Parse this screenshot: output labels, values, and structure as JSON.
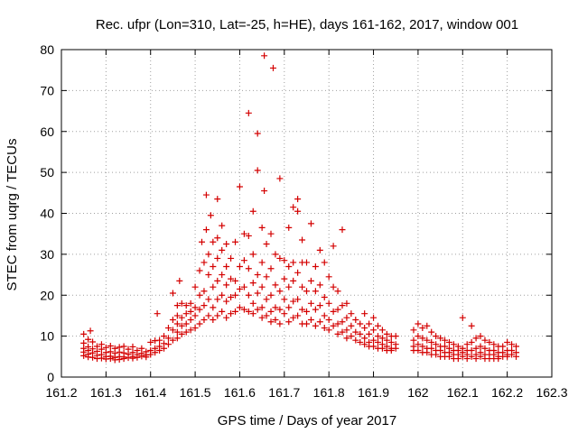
{
  "chart_data": {
    "type": "scatter",
    "title": "Rec. ufpr (Lon=310, Lat=-25, h=HE), days 161-162, 2017, window 001",
    "xlabel": "GPS time / Days of year 2017",
    "ylabel": "STEC from uqrg / TECUs",
    "xlim": [
      161.2,
      162.3
    ],
    "ylim": [
      0,
      80
    ],
    "xticks": [
      "161.2",
      "161.3",
      "161.4",
      "161.5",
      "161.6",
      "161.7",
      "161.8",
      "161.9",
      "162",
      "162.1",
      "162.2",
      "162.3"
    ],
    "yticks": [
      "0",
      "10",
      "20",
      "30",
      "40",
      "50",
      "60",
      "70",
      "80"
    ],
    "grid": true,
    "marker": "plus",
    "color": "#d40000",
    "points": [
      [
        161.25,
        10.5
      ],
      [
        161.25,
        8.3
      ],
      [
        161.25,
        7.0
      ],
      [
        161.25,
        6.1
      ],
      [
        161.25,
        5.2
      ],
      [
        161.26,
        9.2
      ],
      [
        161.26,
        7.4
      ],
      [
        161.26,
        6.5
      ],
      [
        161.26,
        5.6
      ],
      [
        161.26,
        4.9
      ],
      [
        161.265,
        11.3
      ],
      [
        161.27,
        8.6
      ],
      [
        161.27,
        6.9
      ],
      [
        161.27,
        5.9
      ],
      [
        161.27,
        4.8
      ],
      [
        161.28,
        7.5
      ],
      [
        161.28,
        6.3
      ],
      [
        161.28,
        5.3
      ],
      [
        161.28,
        4.5
      ],
      [
        161.29,
        8.0
      ],
      [
        161.29,
        6.8
      ],
      [
        161.29,
        5.5
      ],
      [
        161.29,
        4.6
      ],
      [
        161.3,
        7.2
      ],
      [
        161.3,
        6.0
      ],
      [
        161.3,
        5.0
      ],
      [
        161.3,
        4.4
      ],
      [
        161.31,
        7.6
      ],
      [
        161.31,
        6.2
      ],
      [
        161.31,
        5.1
      ],
      [
        161.31,
        4.5
      ],
      [
        161.32,
        7.0
      ],
      [
        161.32,
        5.8
      ],
      [
        161.32,
        4.8
      ],
      [
        161.32,
        4.2
      ],
      [
        161.33,
        7.3
      ],
      [
        161.33,
        6.1
      ],
      [
        161.33,
        5.0
      ],
      [
        161.33,
        4.3
      ],
      [
        161.34,
        7.5
      ],
      [
        161.34,
        5.9
      ],
      [
        161.34,
        4.9
      ],
      [
        161.34,
        4.5
      ],
      [
        161.35,
        6.8
      ],
      [
        161.35,
        5.6
      ],
      [
        161.35,
        4.7
      ],
      [
        161.36,
        7.4
      ],
      [
        161.36,
        6.0
      ],
      [
        161.36,
        5.0
      ],
      [
        161.36,
        4.6
      ],
      [
        161.37,
        6.5
      ],
      [
        161.37,
        5.5
      ],
      [
        161.37,
        4.8
      ],
      [
        161.38,
        7.0
      ],
      [
        161.38,
        5.8
      ],
      [
        161.38,
        5.1
      ],
      [
        161.39,
        6.2
      ],
      [
        161.39,
        5.4
      ],
      [
        161.39,
        4.9
      ],
      [
        161.4,
        8.5
      ],
      [
        161.4,
        6.5
      ],
      [
        161.4,
        5.5
      ],
      [
        161.41,
        8.9
      ],
      [
        161.41,
        7.0
      ],
      [
        161.41,
        6.0
      ],
      [
        161.415,
        15.5
      ],
      [
        161.42,
        9.0
      ],
      [
        161.42,
        7.5
      ],
      [
        161.42,
        6.5
      ],
      [
        161.43,
        10.0
      ],
      [
        161.43,
        8.2
      ],
      [
        161.43,
        7.0
      ],
      [
        161.44,
        12.0
      ],
      [
        161.44,
        9.5
      ],
      [
        161.44,
        8.0
      ],
      [
        161.45,
        20.5
      ],
      [
        161.45,
        14.0
      ],
      [
        161.45,
        11.5
      ],
      [
        161.45,
        9.0
      ],
      [
        161.46,
        17.5
      ],
      [
        161.46,
        15.0
      ],
      [
        161.46,
        13.0
      ],
      [
        161.46,
        11.0
      ],
      [
        161.46,
        9.5
      ],
      [
        161.465,
        23.5
      ],
      [
        161.47,
        18.0
      ],
      [
        161.47,
        14.5
      ],
      [
        161.47,
        12.5
      ],
      [
        161.47,
        10.5
      ],
      [
        161.48,
        17.5
      ],
      [
        161.48,
        15.5
      ],
      [
        161.48,
        13.0
      ],
      [
        161.48,
        11.0
      ],
      [
        161.49,
        18.0
      ],
      [
        161.49,
        16.0
      ],
      [
        161.49,
        14.0
      ],
      [
        161.49,
        11.5
      ],
      [
        161.5,
        22.0
      ],
      [
        161.5,
        17.0
      ],
      [
        161.5,
        15.0
      ],
      [
        161.5,
        12.0
      ],
      [
        161.51,
        26.0
      ],
      [
        161.51,
        20.0
      ],
      [
        161.51,
        16.5
      ],
      [
        161.51,
        13.0
      ],
      [
        161.515,
        33.0
      ],
      [
        161.52,
        28.0
      ],
      [
        161.52,
        21.0
      ],
      [
        161.52,
        17.5
      ],
      [
        161.52,
        14.0
      ],
      [
        161.525,
        44.5
      ],
      [
        161.525,
        36.0
      ],
      [
        161.53,
        30.0
      ],
      [
        161.53,
        25.0
      ],
      [
        161.53,
        19.0
      ],
      [
        161.53,
        15.0
      ],
      [
        161.535,
        39.5
      ],
      [
        161.54,
        33.0
      ],
      [
        161.54,
        27.0
      ],
      [
        161.54,
        22.0
      ],
      [
        161.54,
        17.0
      ],
      [
        161.54,
        14.0
      ],
      [
        161.55,
        43.5
      ],
      [
        161.55,
        34.0
      ],
      [
        161.55,
        29.0
      ],
      [
        161.55,
        23.5
      ],
      [
        161.55,
        19.0
      ],
      [
        161.55,
        15.0
      ],
      [
        161.56,
        37.0
      ],
      [
        161.56,
        31.0
      ],
      [
        161.56,
        25.0
      ],
      [
        161.56,
        20.0
      ],
      [
        161.56,
        16.0
      ],
      [
        161.57,
        32.5
      ],
      [
        161.57,
        27.0
      ],
      [
        161.57,
        22.5
      ],
      [
        161.57,
        18.5
      ],
      [
        161.57,
        14.5
      ],
      [
        161.58,
        29.0
      ],
      [
        161.58,
        24.0
      ],
      [
        161.58,
        19.5
      ],
      [
        161.58,
        15.5
      ],
      [
        161.59,
        33.0
      ],
      [
        161.59,
        23.5
      ],
      [
        161.59,
        20.0
      ],
      [
        161.59,
        16.0
      ],
      [
        161.6,
        46.5
      ],
      [
        161.6,
        27.0
      ],
      [
        161.6,
        21.5
      ],
      [
        161.6,
        17.0
      ],
      [
        161.61,
        35.0
      ],
      [
        161.61,
        28.5
      ],
      [
        161.61,
        22.0
      ],
      [
        161.61,
        16.5
      ],
      [
        161.62,
        64.5
      ],
      [
        161.62,
        34.5
      ],
      [
        161.62,
        26.5
      ],
      [
        161.62,
        20.0
      ],
      [
        161.62,
        16.0
      ],
      [
        161.63,
        40.5
      ],
      [
        161.63,
        30.0
      ],
      [
        161.63,
        23.0
      ],
      [
        161.63,
        18.0
      ],
      [
        161.63,
        15.5
      ],
      [
        161.64,
        59.5
      ],
      [
        161.64,
        50.5
      ],
      [
        161.64,
        25.0
      ],
      [
        161.64,
        20.5
      ],
      [
        161.64,
        16.5
      ],
      [
        161.65,
        36.5
      ],
      [
        161.65,
        28.0
      ],
      [
        161.65,
        22.0
      ],
      [
        161.65,
        17.0
      ],
      [
        161.65,
        14.5
      ],
      [
        161.655,
        78.5
      ],
      [
        161.655,
        45.5
      ],
      [
        161.66,
        32.5
      ],
      [
        161.66,
        24.5
      ],
      [
        161.66,
        19.0
      ],
      [
        161.66,
        15.0
      ],
      [
        161.67,
        35.0
      ],
      [
        161.67,
        26.5
      ],
      [
        161.67,
        20.0
      ],
      [
        161.67,
        16.0
      ],
      [
        161.67,
        13.5
      ],
      [
        161.675,
        75.5
      ],
      [
        161.68,
        30.0
      ],
      [
        161.68,
        22.5
      ],
      [
        161.68,
        17.0
      ],
      [
        161.68,
        14.0
      ],
      [
        161.69,
        48.5
      ],
      [
        161.69,
        29.0
      ],
      [
        161.69,
        21.0
      ],
      [
        161.69,
        16.5
      ],
      [
        161.69,
        13.0
      ],
      [
        161.7,
        28.5
      ],
      [
        161.7,
        24.0
      ],
      [
        161.7,
        19.0
      ],
      [
        161.7,
        15.5
      ],
      [
        161.71,
        36.5
      ],
      [
        161.71,
        27.0
      ],
      [
        161.71,
        22.0
      ],
      [
        161.71,
        17.0
      ],
      [
        161.71,
        13.5
      ],
      [
        161.72,
        41.5
      ],
      [
        161.72,
        28.0
      ],
      [
        161.72,
        23.5
      ],
      [
        161.72,
        18.5
      ],
      [
        161.72,
        14.5
      ],
      [
        161.73,
        43.5
      ],
      [
        161.73,
        40.5
      ],
      [
        161.73,
        25.5
      ],
      [
        161.73,
        19.0
      ],
      [
        161.73,
        15.0
      ],
      [
        161.74,
        33.5
      ],
      [
        161.74,
        28.0
      ],
      [
        161.74,
        22.0
      ],
      [
        161.74,
        16.5
      ],
      [
        161.74,
        13.0
      ],
      [
        161.75,
        28.0
      ],
      [
        161.75,
        21.0
      ],
      [
        161.75,
        16.0
      ],
      [
        161.75,
        13.0
      ],
      [
        161.76,
        37.5
      ],
      [
        161.76,
        23.5
      ],
      [
        161.76,
        18.0
      ],
      [
        161.76,
        14.0
      ],
      [
        161.77,
        27.0
      ],
      [
        161.77,
        21.0
      ],
      [
        161.77,
        16.5
      ],
      [
        161.77,
        12.5
      ],
      [
        161.78,
        31.0
      ],
      [
        161.78,
        22.5
      ],
      [
        161.78,
        17.5
      ],
      [
        161.78,
        13.5
      ],
      [
        161.79,
        28.0
      ],
      [
        161.79,
        19.5
      ],
      [
        161.79,
        15.0
      ],
      [
        161.79,
        12.0
      ],
      [
        161.8,
        24.5
      ],
      [
        161.8,
        18.0
      ],
      [
        161.8,
        14.0
      ],
      [
        161.8,
        11.5
      ],
      [
        161.81,
        32.0
      ],
      [
        161.81,
        22.0
      ],
      [
        161.81,
        16.0
      ],
      [
        161.81,
        12.5
      ],
      [
        161.82,
        21.0
      ],
      [
        161.82,
        16.5
      ],
      [
        161.82,
        13.0
      ],
      [
        161.82,
        10.5
      ],
      [
        161.83,
        36.0
      ],
      [
        161.83,
        17.5
      ],
      [
        161.83,
        13.5
      ],
      [
        161.83,
        11.0
      ],
      [
        161.84,
        18.0
      ],
      [
        161.84,
        14.5
      ],
      [
        161.84,
        11.5
      ],
      [
        161.84,
        9.5
      ],
      [
        161.85,
        15.5
      ],
      [
        161.85,
        12.5
      ],
      [
        161.85,
        10.0
      ],
      [
        161.86,
        14.0
      ],
      [
        161.86,
        11.0
      ],
      [
        161.86,
        9.0
      ],
      [
        161.87,
        13.0
      ],
      [
        161.87,
        10.5
      ],
      [
        161.87,
        8.5
      ],
      [
        161.88,
        15.5
      ],
      [
        161.88,
        12.0
      ],
      [
        161.88,
        9.5
      ],
      [
        161.88,
        8.0
      ],
      [
        161.89,
        13.0
      ],
      [
        161.89,
        10.5
      ],
      [
        161.89,
        8.5
      ],
      [
        161.89,
        7.5
      ],
      [
        161.9,
        14.5
      ],
      [
        161.9,
        11.5
      ],
      [
        161.9,
        9.0
      ],
      [
        161.9,
        7.5
      ],
      [
        161.91,
        12.5
      ],
      [
        161.91,
        10.0
      ],
      [
        161.91,
        8.5
      ],
      [
        161.91,
        7.0
      ],
      [
        161.92,
        11.5
      ],
      [
        161.92,
        9.5
      ],
      [
        161.92,
        8.0
      ],
      [
        161.92,
        7.0
      ],
      [
        161.93,
        10.5
      ],
      [
        161.93,
        9.0
      ],
      [
        161.93,
        7.5
      ],
      [
        161.93,
        6.5
      ],
      [
        161.94,
        10.0
      ],
      [
        161.94,
        8.5
      ],
      [
        161.94,
        7.0
      ],
      [
        161.94,
        6.5
      ],
      [
        161.95,
        10.0
      ],
      [
        161.95,
        8.0
      ],
      [
        161.95,
        7.0
      ],
      [
        161.99,
        11.5
      ],
      [
        161.99,
        9.0
      ],
      [
        161.99,
        7.5
      ],
      [
        161.99,
        6.5
      ],
      [
        162.0,
        13.0
      ],
      [
        162.0,
        10.0
      ],
      [
        162.0,
        8.0
      ],
      [
        162.0,
        6.5
      ],
      [
        162.01,
        12.0
      ],
      [
        162.01,
        9.5
      ],
      [
        162.01,
        7.5
      ],
      [
        162.01,
        6.0
      ],
      [
        162.02,
        12.5
      ],
      [
        162.02,
        9.0
      ],
      [
        162.02,
        7.0
      ],
      [
        162.02,
        6.0
      ],
      [
        162.03,
        11.0
      ],
      [
        162.03,
        8.5
      ],
      [
        162.03,
        7.0
      ],
      [
        162.03,
        5.5
      ],
      [
        162.04,
        10.0
      ],
      [
        162.04,
        8.0
      ],
      [
        162.04,
        6.5
      ],
      [
        162.04,
        5.5
      ],
      [
        162.05,
        9.5
      ],
      [
        162.05,
        7.5
      ],
      [
        162.05,
        6.5
      ],
      [
        162.05,
        5.0
      ],
      [
        162.06,
        9.0
      ],
      [
        162.06,
        7.5
      ],
      [
        162.06,
        6.0
      ],
      [
        162.06,
        5.0
      ],
      [
        162.07,
        8.5
      ],
      [
        162.07,
        7.0
      ],
      [
        162.07,
        6.0
      ],
      [
        162.07,
        5.0
      ],
      [
        162.08,
        8.0
      ],
      [
        162.08,
        6.5
      ],
      [
        162.08,
        5.5
      ],
      [
        162.08,
        4.5
      ],
      [
        162.09,
        7.5
      ],
      [
        162.09,
        6.5
      ],
      [
        162.09,
        5.5
      ],
      [
        162.09,
        4.5
      ],
      [
        162.1,
        14.5
      ],
      [
        162.1,
        7.0
      ],
      [
        162.1,
        6.0
      ],
      [
        162.1,
        5.0
      ],
      [
        162.11,
        8.0
      ],
      [
        162.11,
        6.5
      ],
      [
        162.11,
        5.5
      ],
      [
        162.11,
        4.5
      ],
      [
        162.12,
        12.5
      ],
      [
        162.12,
        8.5
      ],
      [
        162.12,
        6.5
      ],
      [
        162.12,
        5.0
      ],
      [
        162.13,
        9.5
      ],
      [
        162.13,
        7.0
      ],
      [
        162.13,
        5.5
      ],
      [
        162.13,
        4.5
      ],
      [
        162.14,
        10.0
      ],
      [
        162.14,
        7.5
      ],
      [
        162.14,
        6.0
      ],
      [
        162.14,
        5.0
      ],
      [
        162.15,
        9.0
      ],
      [
        162.15,
        7.0
      ],
      [
        162.15,
        5.5
      ],
      [
        162.15,
        4.5
      ],
      [
        162.16,
        8.5
      ],
      [
        162.16,
        6.5
      ],
      [
        162.16,
        5.5
      ],
      [
        162.16,
        4.5
      ],
      [
        162.17,
        8.0
      ],
      [
        162.17,
        6.5
      ],
      [
        162.17,
        5.5
      ],
      [
        162.17,
        4.5
      ],
      [
        162.18,
        7.5
      ],
      [
        162.18,
        6.0
      ],
      [
        162.18,
        5.0
      ],
      [
        162.18,
        4.5
      ],
      [
        162.19,
        7.5
      ],
      [
        162.19,
        6.0
      ],
      [
        162.19,
        5.0
      ],
      [
        162.2,
        8.5
      ],
      [
        162.2,
        6.5
      ],
      [
        162.2,
        5.5
      ],
      [
        162.2,
        5.0
      ],
      [
        162.21,
        8.0
      ],
      [
        162.21,
        6.5
      ],
      [
        162.21,
        5.5
      ],
      [
        162.22,
        7.5
      ],
      [
        162.22,
        6.0
      ],
      [
        162.22,
        5.0
      ]
    ]
  }
}
